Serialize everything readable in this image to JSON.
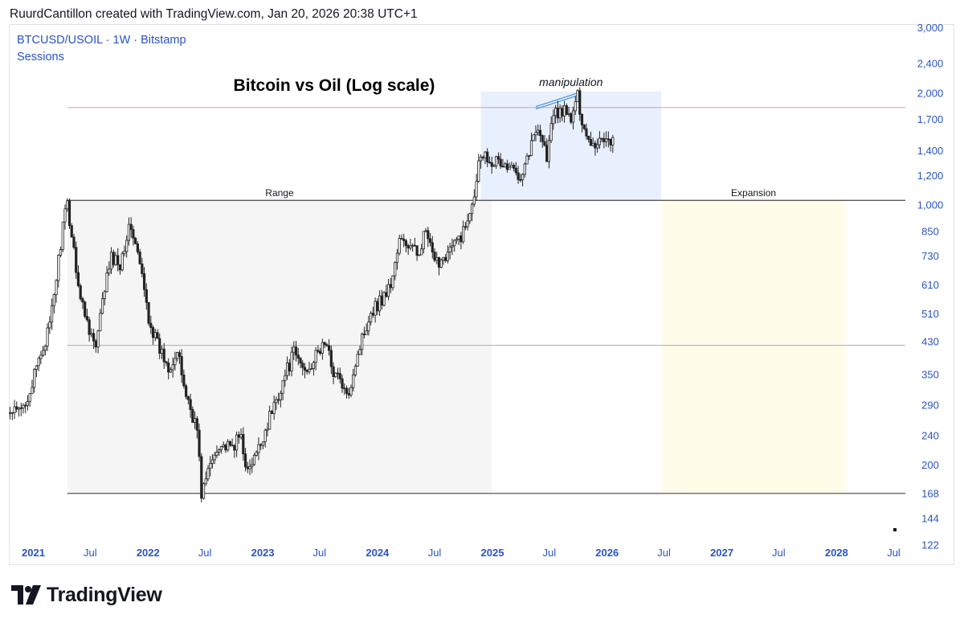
{
  "header": {
    "attribution": "RuurdCantillon created with TradingView.com, Jan 20, 2026 20:38 UTC+1"
  },
  "legend": {
    "symbol_line": "BTCUSD/USOIL · 1W · Bitstamp",
    "sessions": "Sessions"
  },
  "footer": {
    "brand": "TradingView"
  },
  "colors": {
    "legend_text": "#2a54c4",
    "axis_text": "#2a54c4",
    "range_box": "#f5f5f5",
    "manipulation_box": "#e8f0fe",
    "expansion_box": "#fffdea",
    "resistance_line": "#e89a9a",
    "mid_line": "#a3a6d4",
    "level_line": "#444444",
    "trend_line": "#4a8fe0",
    "candle": "#222222"
  },
  "chart_data": {
    "type": "candlestick",
    "title": "Bitcoin vs Oil (Log scale)",
    "symbol": "BTCUSD/USOIL",
    "interval": "1W",
    "exchange": "Bitstamp",
    "y_scale": "log",
    "ylim": [
      115,
      3050
    ],
    "y_ticks": [
      3000,
      2400,
      2000,
      1700,
      1400,
      1200,
      1000,
      850,
      730,
      610,
      510,
      430,
      350,
      290,
      240,
      200,
      168,
      144,
      122
    ],
    "y_tick_labels": [
      "3,000",
      "2,400",
      "2,000",
      "1,700",
      "1,400",
      "1,200",
      "1,000",
      "850",
      "730",
      "610",
      "510",
      "430",
      "350",
      "290",
      "240",
      "200",
      "168",
      "144",
      "122"
    ],
    "xlim": [
      "2020-10-15",
      "2029-01-10"
    ],
    "x_ticks": [
      {
        "date": "2021-01-01",
        "label": "2021",
        "major": true
      },
      {
        "date": "2021-07-01",
        "label": "Jul",
        "major": false
      },
      {
        "date": "2022-01-01",
        "label": "2022",
        "major": true
      },
      {
        "date": "2022-07-01",
        "label": "Jul",
        "major": false
      },
      {
        "date": "2023-01-01",
        "label": "2023",
        "major": true
      },
      {
        "date": "2023-07-01",
        "label": "Jul",
        "major": false
      },
      {
        "date": "2024-01-01",
        "label": "2024",
        "major": true
      },
      {
        "date": "2024-07-01",
        "label": "Jul",
        "major": false
      },
      {
        "date": "2025-01-01",
        "label": "2025",
        "major": true
      },
      {
        "date": "2025-07-01",
        "label": "Jul",
        "major": false
      },
      {
        "date": "2026-01-01",
        "label": "2026",
        "major": true
      },
      {
        "date": "2026-07-01",
        "label": "Jul",
        "major": false
      },
      {
        "date": "2027-01-01",
        "label": "2027",
        "major": true
      },
      {
        "date": "2027-07-01",
        "label": "Jul",
        "major": false
      },
      {
        "date": "2028-01-01",
        "label": "2028",
        "major": true
      },
      {
        "date": "2028-07-01",
        "label": "Jul",
        "major": false
      }
    ],
    "series": [
      {
        "ohlc_note": "weekly closes (approx) — used to draw candles",
        "points": [
          [
            "2020-10-19",
            275
          ],
          [
            "2020-11-23",
            280
          ],
          [
            "2020-12-28",
            330
          ],
          [
            "2021-01-25",
            400
          ],
          [
            "2021-02-22",
            470
          ],
          [
            "2021-03-15",
            640
          ],
          [
            "2021-04-05",
            880
          ],
          [
            "2021-04-19",
            1000
          ],
          [
            "2021-05-10",
            760
          ],
          [
            "2021-05-31",
            560
          ],
          [
            "2021-06-28",
            470
          ],
          [
            "2021-07-19",
            410
          ],
          [
            "2021-08-16",
            600
          ],
          [
            "2021-09-06",
            720
          ],
          [
            "2021-10-04",
            700
          ],
          [
            "2021-10-25",
            830
          ],
          [
            "2021-11-08",
            880
          ],
          [
            "2021-12-06",
            690
          ],
          [
            "2022-01-03",
            500
          ],
          [
            "2022-01-31",
            420
          ],
          [
            "2022-03-07",
            370
          ],
          [
            "2022-04-04",
            400
          ],
          [
            "2022-05-02",
            310
          ],
          [
            "2022-06-06",
            250
          ],
          [
            "2022-06-20",
            168
          ],
          [
            "2022-07-18",
            200
          ],
          [
            "2022-08-15",
            230
          ],
          [
            "2022-09-19",
            220
          ],
          [
            "2022-10-24",
            240
          ],
          [
            "2022-11-14",
            190
          ],
          [
            "2022-12-19",
            220
          ],
          [
            "2023-01-16",
            260
          ],
          [
            "2023-02-13",
            300
          ],
          [
            "2023-03-13",
            350
          ],
          [
            "2023-04-10",
            400
          ],
          [
            "2023-05-15",
            360
          ],
          [
            "2023-06-19",
            390
          ],
          [
            "2023-07-17",
            430
          ],
          [
            "2023-08-14",
            360
          ],
          [
            "2023-09-11",
            330
          ],
          [
            "2023-09-25",
            300
          ],
          [
            "2023-10-23",
            380
          ],
          [
            "2023-11-13",
            440
          ],
          [
            "2023-12-11",
            520
          ],
          [
            "2024-01-15",
            560
          ],
          [
            "2024-02-12",
            610
          ],
          [
            "2024-03-11",
            800
          ],
          [
            "2024-04-08",
            780
          ],
          [
            "2024-05-06",
            740
          ],
          [
            "2024-06-03",
            850
          ],
          [
            "2024-07-01",
            690
          ],
          [
            "2024-08-05",
            740
          ],
          [
            "2024-09-02",
            780
          ],
          [
            "2024-10-07",
            870
          ],
          [
            "2024-11-04",
            1100
          ],
          [
            "2024-11-25",
            1400
          ],
          [
            "2024-12-16",
            1350
          ],
          [
            "2025-01-20",
            1300
          ],
          [
            "2025-02-24",
            1250
          ],
          [
            "2025-03-31",
            1220
          ],
          [
            "2025-04-28",
            1400
          ],
          [
            "2025-05-26",
            1650
          ],
          [
            "2025-06-23",
            1350
          ],
          [
            "2025-07-14",
            1750
          ],
          [
            "2025-08-11",
            1800
          ],
          [
            "2025-09-08",
            1700
          ],
          [
            "2025-09-29",
            1950
          ],
          [
            "2025-10-20",
            1600
          ],
          [
            "2025-11-17",
            1450
          ],
          [
            "2025-12-15",
            1520
          ],
          [
            "2026-01-19",
            1500
          ]
        ]
      }
    ],
    "annotations": [
      {
        "type": "box",
        "label": "Range",
        "x_start": "2021-04-19",
        "x_end": "2024-12-30",
        "y_low": 168,
        "y_high": 1030
      },
      {
        "type": "box",
        "label": "manipulation",
        "x_start": "2024-11-25",
        "x_end": "2026-06-22",
        "y_low": 1030,
        "y_high": 2020
      },
      {
        "type": "box",
        "label": "Expansion",
        "x_start": "2026-06-22",
        "x_end": "2028-01-31",
        "y_low": 168,
        "y_high": 1030
      },
      {
        "type": "hline",
        "name": "resistance",
        "y": 1830,
        "x_start": "2021-04-19"
      },
      {
        "type": "hline",
        "name": "range-high",
        "y": 1030,
        "x_start": "2021-04-19"
      },
      {
        "type": "hline",
        "name": "mid",
        "y": 420,
        "x_start": "2021-04-19"
      },
      {
        "type": "hline",
        "name": "range-low",
        "y": 168,
        "x_start": "2021-04-19"
      },
      {
        "type": "trendline",
        "name": "manipulation-highs",
        "from": [
          "2025-05-19",
          1840
        ],
        "to": [
          "2025-09-29",
          2000
        ]
      }
    ]
  }
}
